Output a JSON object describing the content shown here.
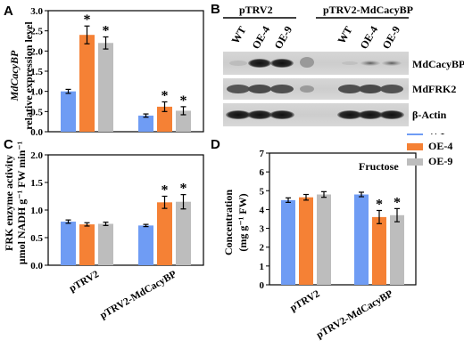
{
  "colors": {
    "WT": "#6f9cf4",
    "OE4": "#f58135",
    "OE9": "#bdbdbd",
    "star": "#000000"
  },
  "panels": {
    "A": {
      "label": "A",
      "ylabel_gene": "MdCacyBP",
      "ylabel_rest": "relative expression level"
    },
    "B": {
      "label": "B"
    },
    "C": {
      "label": "C",
      "ylabel_line1": "FRK enzyme activity",
      "ylabel_line2": "μmol NADH g⁻¹ FW min⁻¹"
    },
    "D": {
      "label": "D",
      "ylabel_line1": "Concentration",
      "ylabel_line2": "(mg g⁻¹ FW)",
      "annotation": "Fructose"
    }
  },
  "legend": [
    "WT",
    "OE-4",
    "OE-9"
  ],
  "blot": {
    "group_left": "pTRV2",
    "group_right": "pTRV2-MdCacyBP",
    "lanes_left": [
      "WT",
      "OE-4",
      "OE-9"
    ],
    "lanes_right": [
      "WT",
      "OE-4",
      "OE-9"
    ],
    "row_labels": [
      "MdCacyBP",
      "MdFRK2",
      "β-Actin"
    ]
  },
  "chart_data": [
    {
      "id": "A",
      "type": "bar",
      "categories": [
        "pTRV2",
        "pTRV2-MdCacyBP"
      ],
      "series": [
        {
          "name": "WT",
          "values": [
            1.0,
            0.4
          ],
          "errors": [
            0.05,
            0.04
          ],
          "significant": [
            false,
            false
          ]
        },
        {
          "name": "OE-4",
          "values": [
            2.4,
            0.62
          ],
          "errors": [
            0.22,
            0.12
          ],
          "significant": [
            true,
            true
          ]
        },
        {
          "name": "OE-9",
          "values": [
            2.2,
            0.52
          ],
          "errors": [
            0.15,
            0.1
          ],
          "significant": [
            true,
            true
          ]
        }
      ],
      "ylim": [
        0,
        3.0
      ],
      "yticks": [
        0.0,
        0.5,
        1.0,
        1.5,
        2.0,
        2.5,
        3.0
      ],
      "show_xlabels": false
    },
    {
      "id": "C",
      "type": "bar",
      "categories": [
        "pTRV2",
        "pTRV2-MdCacyBP"
      ],
      "series": [
        {
          "name": "WT",
          "values": [
            0.79,
            0.72
          ],
          "errors": [
            0.03,
            0.02
          ],
          "significant": [
            false,
            false
          ]
        },
        {
          "name": "OE-4",
          "values": [
            0.74,
            1.14
          ],
          "errors": [
            0.03,
            0.11
          ],
          "significant": [
            false,
            true
          ]
        },
        {
          "name": "OE-9",
          "values": [
            0.75,
            1.15
          ],
          "errors": [
            0.03,
            0.13
          ],
          "significant": [
            false,
            true
          ]
        }
      ],
      "ylim": [
        0,
        2.0
      ],
      "yticks": [
        0.0,
        0.5,
        1.0,
        1.5,
        2.0
      ],
      "show_xlabels": true
    },
    {
      "id": "D",
      "type": "bar",
      "categories": [
        "pTRV2",
        "pTRV2-MdCacyBP"
      ],
      "series": [
        {
          "name": "WT",
          "values": [
            4.5,
            4.8
          ],
          "errors": [
            0.12,
            0.12
          ],
          "significant": [
            false,
            false
          ]
        },
        {
          "name": "OE-4",
          "values": [
            4.65,
            3.6
          ],
          "errors": [
            0.15,
            0.35
          ],
          "significant": [
            false,
            true
          ]
        },
        {
          "name": "OE-9",
          "values": [
            4.8,
            3.7
          ],
          "errors": [
            0.15,
            0.35
          ],
          "significant": [
            false,
            true
          ]
        }
      ],
      "ylim": [
        0,
        7
      ],
      "yticks": [
        0,
        1,
        2,
        3,
        4,
        5,
        6,
        7
      ],
      "show_xlabels": true
    }
  ]
}
